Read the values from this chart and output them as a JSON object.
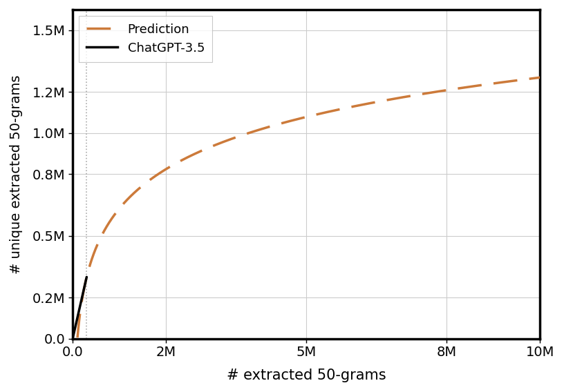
{
  "title": "",
  "xlabel": "# extracted 50-grams",
  "ylabel": "# unique extracted 50-grams",
  "xlim": [
    0,
    10000000
  ],
  "ylim": [
    0,
    1600000
  ],
  "xticks": [
    0,
    2000000,
    5000000,
    8000000,
    10000000
  ],
  "xtick_labels": [
    "0.0",
    "2M",
    "5M",
    "8M",
    "10M"
  ],
  "yticks": [
    0,
    200000,
    500000,
    800000,
    1000000,
    1200000,
    1500000
  ],
  "ytick_labels": [
    "0.0",
    "0.2M",
    "0.5M",
    "0.8M",
    "1.0M",
    "1.2M",
    "1.5M"
  ],
  "solid_x_end": 300000,
  "solid_y_end": 300000,
  "prediction_end_x": 10000000,
  "vline_x": 300000,
  "solid_color": "#000000",
  "dashed_color": "#cc7a3a",
  "vline_color": "#aaaaaa",
  "pred_y_at_end": 1270000,
  "legend_labels": [
    "Prediction",
    "ChatGPT-3.5"
  ],
  "figsize": [
    8.16,
    5.68
  ],
  "dpi": 100
}
